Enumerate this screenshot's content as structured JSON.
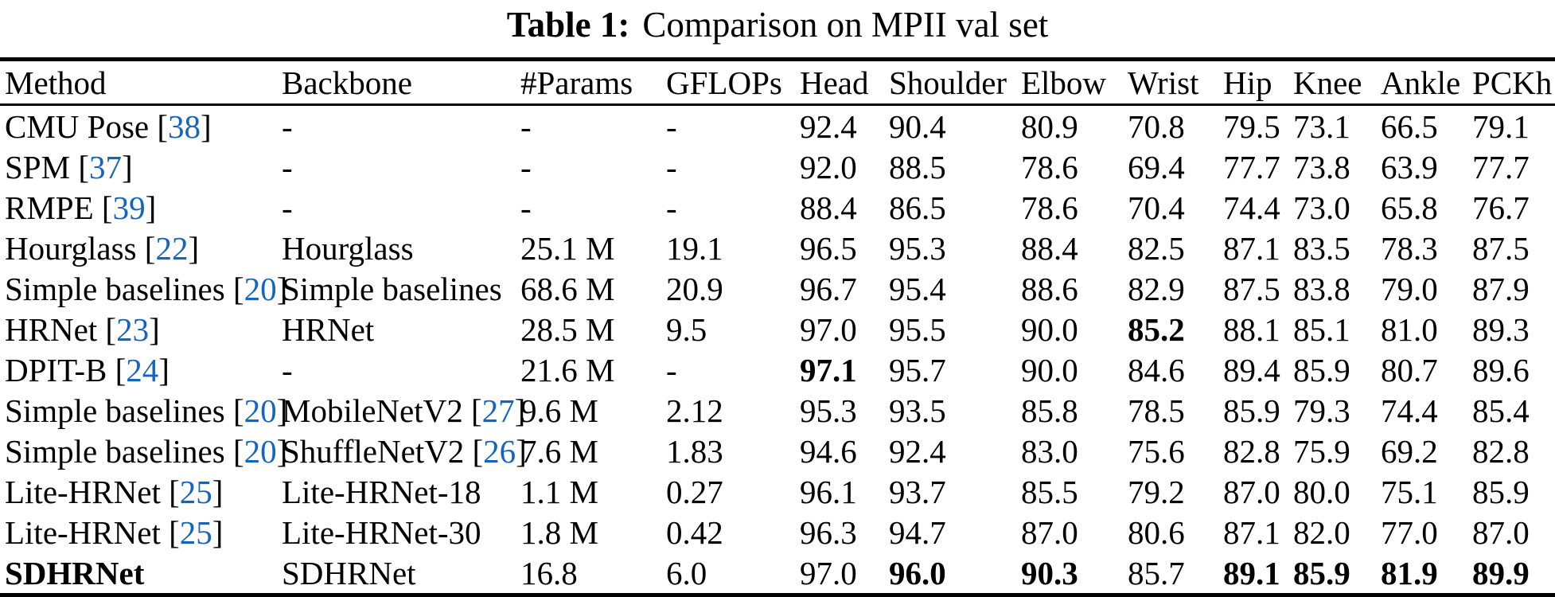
{
  "title": {
    "label": "Table 1:",
    "text": "Comparison on MPII val set"
  },
  "table": {
    "citation_color": "#1565C0",
    "columns": [
      "Method",
      "Backbone",
      "#Params",
      "GFLOPs",
      "Head",
      "Shoulder",
      "Elbow",
      "Wrist",
      "Hip",
      "Knee",
      "Ankle",
      "PCKh"
    ],
    "rows": [
      {
        "method": "CMU Pose",
        "method_cite": "38",
        "method_bold": false,
        "backbone": "-",
        "backbone_cite": "",
        "params": "-",
        "gflops": "-",
        "values": [
          "92.4",
          "90.4",
          "80.9",
          "70.8",
          "79.5",
          "73.1",
          "66.5",
          "79.1"
        ],
        "bold": []
      },
      {
        "method": "SPM",
        "method_cite": "37",
        "method_bold": false,
        "backbone": "-",
        "backbone_cite": "",
        "params": "-",
        "gflops": "-",
        "values": [
          "92.0",
          "88.5",
          "78.6",
          "69.4",
          "77.7",
          "73.8",
          "63.9",
          "77.7"
        ],
        "bold": []
      },
      {
        "method": "RMPE",
        "method_cite": "39",
        "method_bold": false,
        "backbone": "-",
        "backbone_cite": "",
        "params": "-",
        "gflops": "-",
        "values": [
          "88.4",
          "86.5",
          "78.6",
          "70.4",
          "74.4",
          "73.0",
          "65.8",
          "76.7"
        ],
        "bold": []
      },
      {
        "method": "Hourglass",
        "method_cite": "22",
        "method_bold": false,
        "backbone": "Hourglass",
        "backbone_cite": "",
        "params": "25.1 M",
        "gflops": "19.1",
        "values": [
          "96.5",
          "95.3",
          "88.4",
          "82.5",
          "87.1",
          "83.5",
          "78.3",
          "87.5"
        ],
        "bold": []
      },
      {
        "method": "Simple baselines",
        "method_cite": "20",
        "method_bold": false,
        "backbone": "Simple baselines",
        "backbone_cite": "",
        "params": "68.6 M",
        "gflops": "20.9",
        "values": [
          "96.7",
          "95.4",
          "88.6",
          "82.9",
          "87.5",
          "83.8",
          "79.0",
          "87.9"
        ],
        "bold": []
      },
      {
        "method": "HRNet",
        "method_cite": "23",
        "method_bold": false,
        "backbone": "HRNet",
        "backbone_cite": "",
        "params": "28.5 M",
        "gflops": "9.5",
        "values": [
          "97.0",
          "95.5",
          "90.0",
          "85.2",
          "88.1",
          "85.1",
          "81.0",
          "89.3"
        ],
        "bold": [
          3
        ]
      },
      {
        "method": "DPIT-B",
        "method_cite": "24",
        "method_bold": false,
        "backbone": "-",
        "backbone_cite": "",
        "params": "21.6 M",
        "gflops": "-",
        "values": [
          "97.1",
          "95.7",
          "90.0",
          "84.6",
          "89.4",
          "85.9",
          "80.7",
          "89.6"
        ],
        "bold": [
          0
        ]
      },
      {
        "method": "Simple baselines",
        "method_cite": "20",
        "method_bold": false,
        "backbone": "MobileNetV2",
        "backbone_cite": "27",
        "params": "9.6 M",
        "gflops": "2.12",
        "values": [
          "95.3",
          "93.5",
          "85.8",
          "78.5",
          "85.9",
          "79.3",
          "74.4",
          "85.4"
        ],
        "bold": []
      },
      {
        "method": "Simple baselines",
        "method_cite": "20",
        "method_bold": false,
        "backbone": "ShuffleNetV2",
        "backbone_cite": "26",
        "params": "7.6 M",
        "gflops": "1.83",
        "values": [
          "94.6",
          "92.4",
          "83.0",
          "75.6",
          "82.8",
          "75.9",
          "69.2",
          "82.8"
        ],
        "bold": []
      },
      {
        "method": "Lite-HRNet",
        "method_cite": "25",
        "method_bold": false,
        "backbone": "Lite-HRNet-18",
        "backbone_cite": "",
        "params": "1.1 M",
        "gflops": "0.27",
        "values": [
          "96.1",
          "93.7",
          "85.5",
          "79.2",
          "87.0",
          "80.0",
          "75.1",
          "85.9"
        ],
        "bold": []
      },
      {
        "method": "Lite-HRNet",
        "method_cite": "25",
        "method_bold": false,
        "backbone": "Lite-HRNet-30",
        "backbone_cite": "",
        "params": "1.8 M",
        "gflops": "0.42",
        "values": [
          "96.3",
          "94.7",
          "87.0",
          "80.6",
          "87.1",
          "82.0",
          "77.0",
          "87.0"
        ],
        "bold": []
      },
      {
        "method": "SDHRNet",
        "method_cite": "",
        "method_bold": true,
        "backbone": "SDHRNet",
        "backbone_cite": "",
        "params": "16.8",
        "gflops": "6.0",
        "values": [
          "97.0",
          "96.0",
          "90.3",
          "85.7",
          "89.1",
          "85.9",
          "81.9",
          "89.9"
        ],
        "bold": [
          1,
          2,
          4,
          5,
          6,
          7
        ]
      }
    ]
  }
}
